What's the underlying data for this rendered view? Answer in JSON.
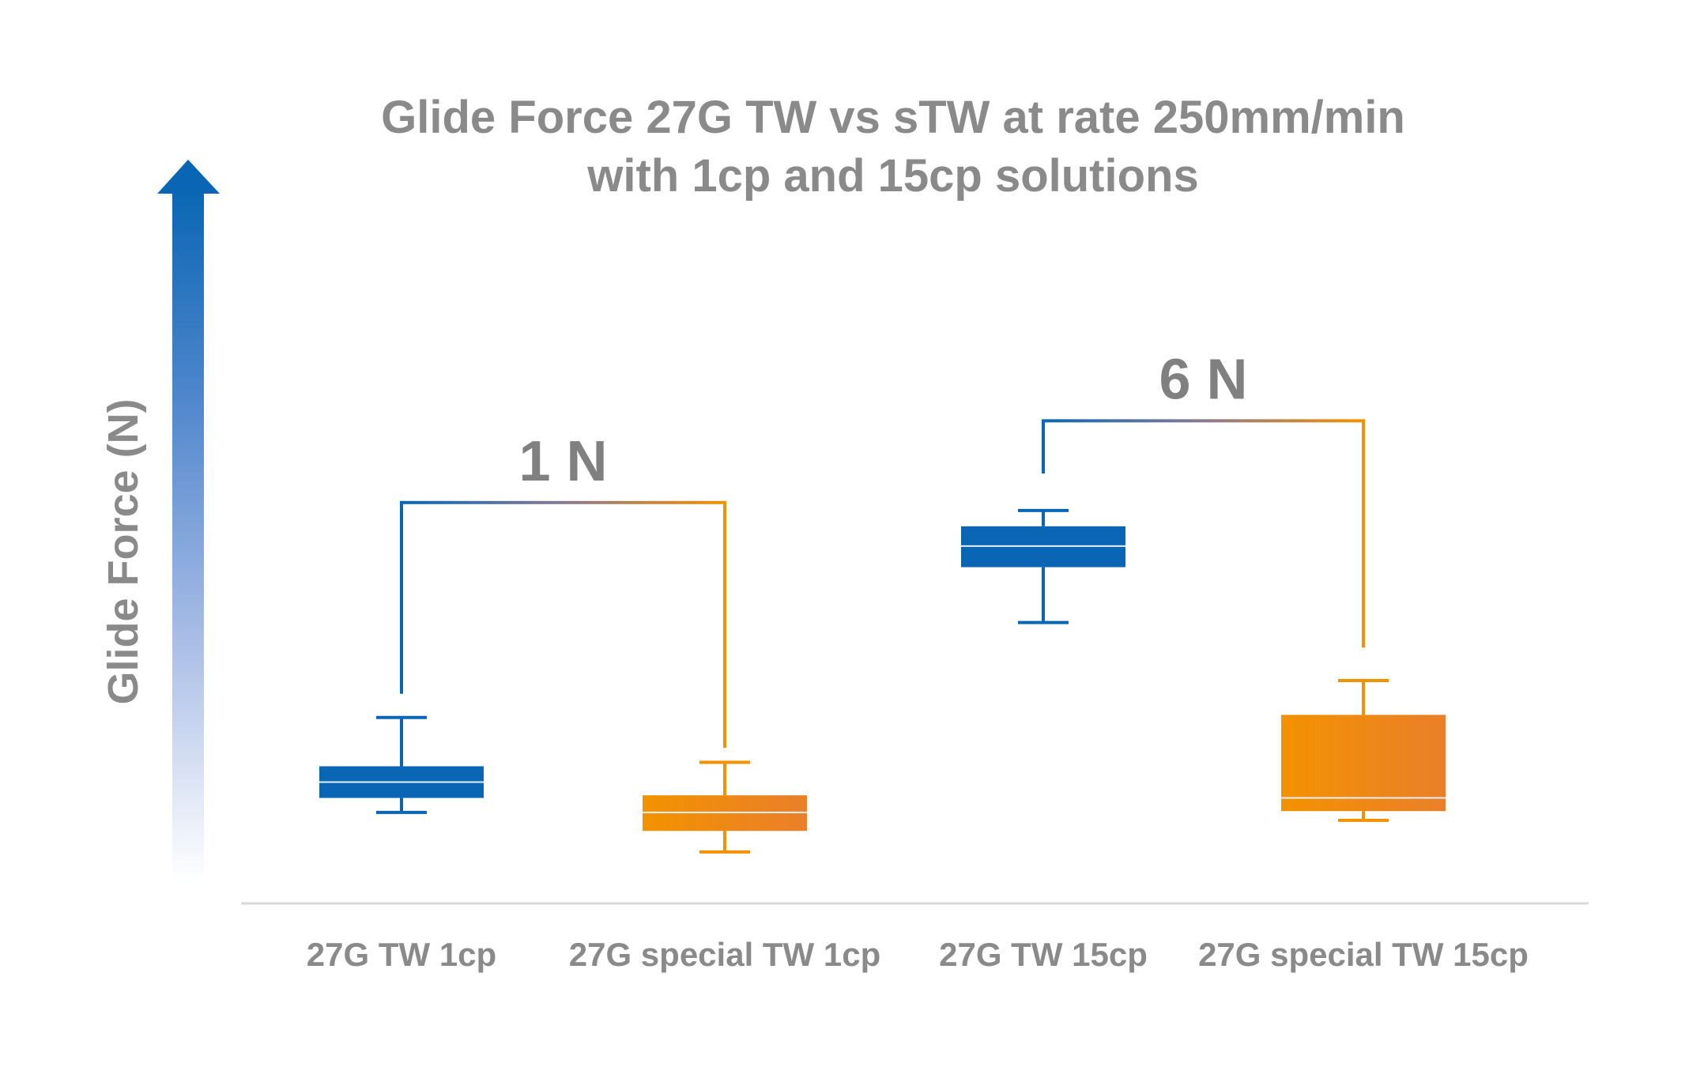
{
  "colors": {
    "blue": "#0a66b4",
    "orange": "#f39200",
    "orange_dark": "#ea7f2a",
    "text": "#8a8a8a",
    "axis": "#d9d9d9"
  },
  "chart_data": {
    "type": "boxplot",
    "title": "Glide Force 27G TW vs sTW at rate 250mm/min",
    "subtitle": "with 1cp and 15cp solutions",
    "ylabel": "Glide Force (N)",
    "xlabel": "",
    "y_axis_ticks": false,
    "grid": false,
    "units_note": "relative scale, y axis unlabeled",
    "categories": [
      "27G TW 1cp",
      "27G special TW 1cp",
      "27G TW 15cp",
      "27G special TW 15cp"
    ],
    "boxes": [
      {
        "category": "27G TW 1cp",
        "color_key": "blue",
        "min": 3.45,
        "q1": 4.0,
        "median": 4.6,
        "q3": 5.2,
        "max": 7.05
      },
      {
        "category": "27G special TW 1cp",
        "color_key": "orange",
        "min": 1.95,
        "q1": 2.75,
        "median": 3.45,
        "q3": 4.1,
        "max": 5.35
      },
      {
        "category": "27G TW 15cp",
        "color_key": "blue",
        "min": 10.65,
        "q1": 12.75,
        "median": 13.55,
        "q3": 14.3,
        "max": 14.9
      },
      {
        "category": "27G special TW 15cp",
        "color_key": "orange",
        "min": 3.15,
        "q1": 3.5,
        "median": 4.0,
        "q3": 7.15,
        "max": 8.45
      }
    ],
    "annotations": [
      {
        "label": "1 N",
        "from": "27G TW 1cp",
        "to": "27G special TW 1cp",
        "bracket_level": 15.2,
        "left_end": 7.95,
        "right_end": 5.9
      },
      {
        "label": "6 N",
        "from": "27G TW 15cp",
        "to": "27G special TW 15cp",
        "bracket_level": 18.3,
        "left_end": 16.3,
        "right_end": 9.7
      }
    ],
    "ylim": [
      0,
      30
    ]
  }
}
